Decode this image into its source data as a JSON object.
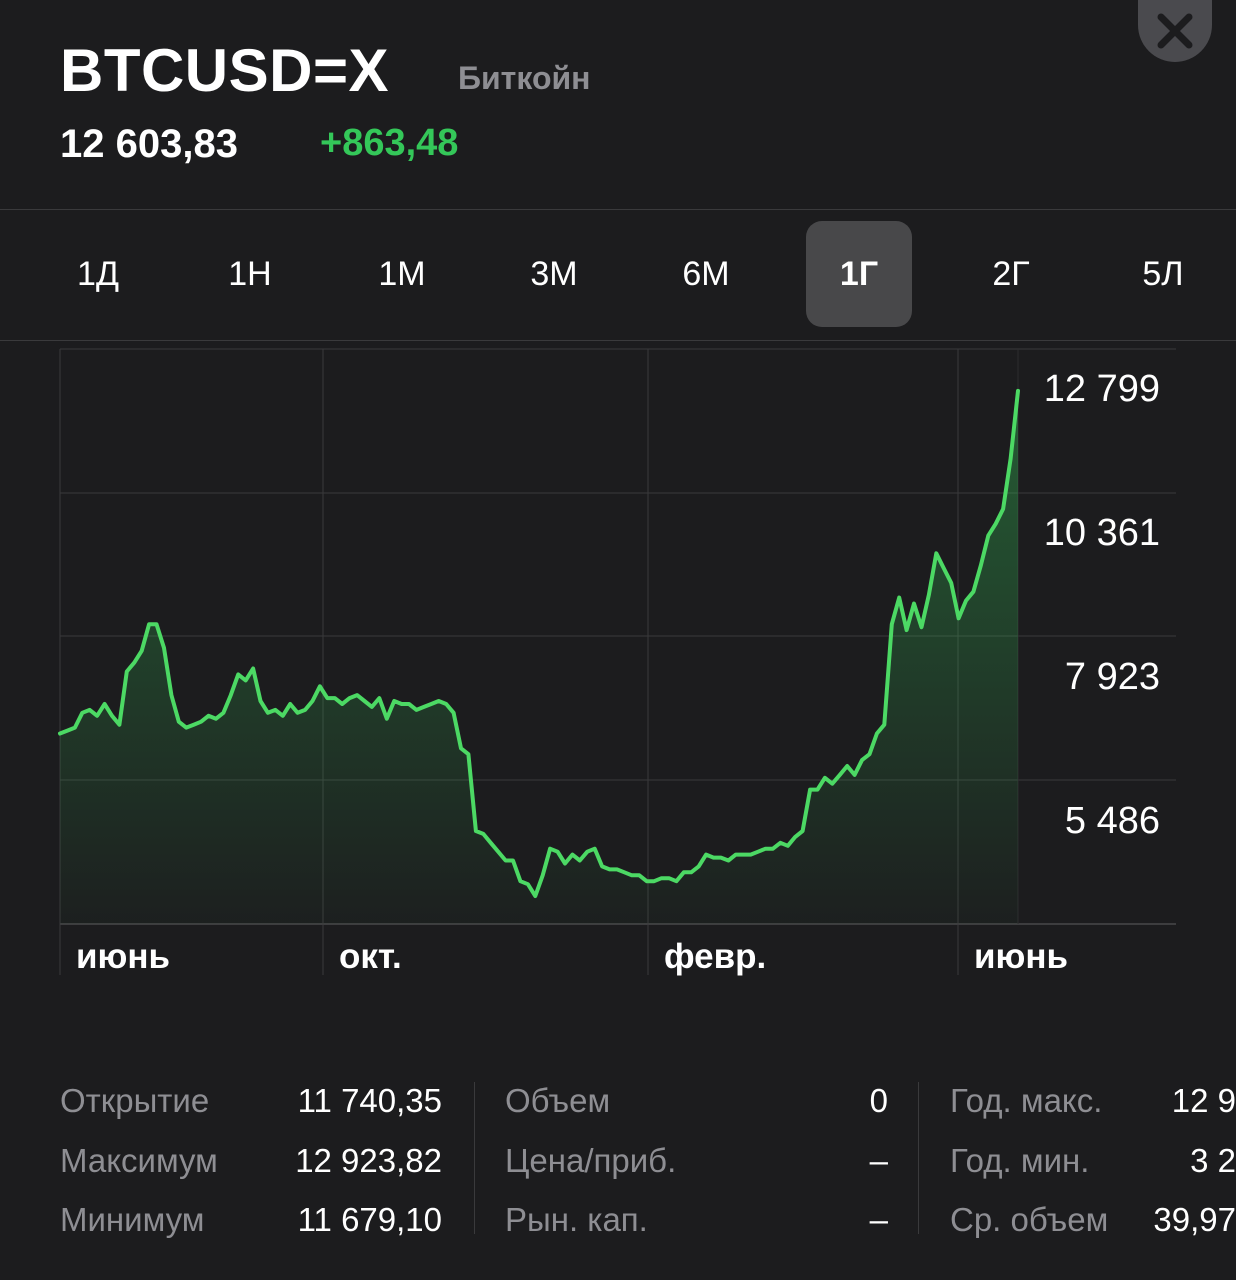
{
  "header": {
    "ticker": "BTCUSD=X",
    "company": "Биткойн",
    "price": "12 603,83",
    "change": "+863,48",
    "close_icon": "close-x-icon"
  },
  "ranges": {
    "items": [
      "1Д",
      "1Н",
      "1М",
      "3М",
      "6М",
      "1Г",
      "2Г",
      "5Л"
    ],
    "selected": "1Г"
  },
  "colors": {
    "background": "#1c1c1e",
    "line": "#4cd964",
    "positive": "#34c759",
    "label": "#8e8e93",
    "grid": "#3a3a3c"
  },
  "chart_data": {
    "type": "area",
    "y_ticks": [
      "12 799",
      "10 361",
      "7 923",
      "5 486"
    ],
    "y_tick_values": [
      12799,
      10361,
      7923,
      5486
    ],
    "x_labels": [
      "июнь",
      "окт.",
      "февр.",
      "июнь"
    ],
    "grid": true,
    "values": [
      6950,
      7000,
      7050,
      7300,
      7350,
      7250,
      7450,
      7250,
      7100,
      8000,
      8150,
      8350,
      8800,
      8800,
      8400,
      7600,
      7150,
      7050,
      7100,
      7150,
      7250,
      7200,
      7300,
      7600,
      7950,
      7850,
      8050,
      7500,
      7300,
      7350,
      7250,
      7450,
      7300,
      7350,
      7500,
      7750,
      7550,
      7550,
      7450,
      7550,
      7600,
      7500,
      7400,
      7550,
      7200,
      7500,
      7450,
      7450,
      7350,
      7400,
      7450,
      7500,
      7450,
      7300,
      6700,
      6600,
      5300,
      5250,
      5100,
      4950,
      4800,
      4800,
      4450,
      4400,
      4200,
      4550,
      5000,
      4950,
      4750,
      4900,
      4800,
      4950,
      5000,
      4700,
      4650,
      4650,
      4600,
      4550,
      4550,
      4450,
      4450,
      4500,
      4500,
      4450,
      4600,
      4600,
      4700,
      4900,
      4850,
      4850,
      4800,
      4900,
      4900,
      4900,
      4950,
      5000,
      5000,
      5100,
      5050,
      5200,
      5300,
      6000,
      6000,
      6200,
      6100,
      6250,
      6400,
      6250,
      6500,
      6600,
      6950,
      7100,
      8800,
      9250,
      8700,
      9150,
      8750,
      9300,
      10000,
      9750,
      9500,
      8900,
      9200,
      9350,
      9800,
      10300,
      10500,
      10750,
      11600,
      12750
    ]
  },
  "stats": {
    "col1": [
      {
        "label": "Открытие",
        "value": "11 740,35"
      },
      {
        "label": "Максимум",
        "value": "12 923,82"
      },
      {
        "label": "Минимум",
        "value": "11 679,10"
      }
    ],
    "col2": [
      {
        "label": "Объем",
        "value": "0"
      },
      {
        "label": "Цена/приб.",
        "value": "–"
      },
      {
        "label": "Рын. кап.",
        "value": "–"
      }
    ],
    "col3": [
      {
        "label": "Год. макс.",
        "value": "12 9"
      },
      {
        "label": "Год. мин.",
        "value": "3 2"
      },
      {
        "label": "Ср. объем",
        "value": "39,97"
      }
    ]
  }
}
